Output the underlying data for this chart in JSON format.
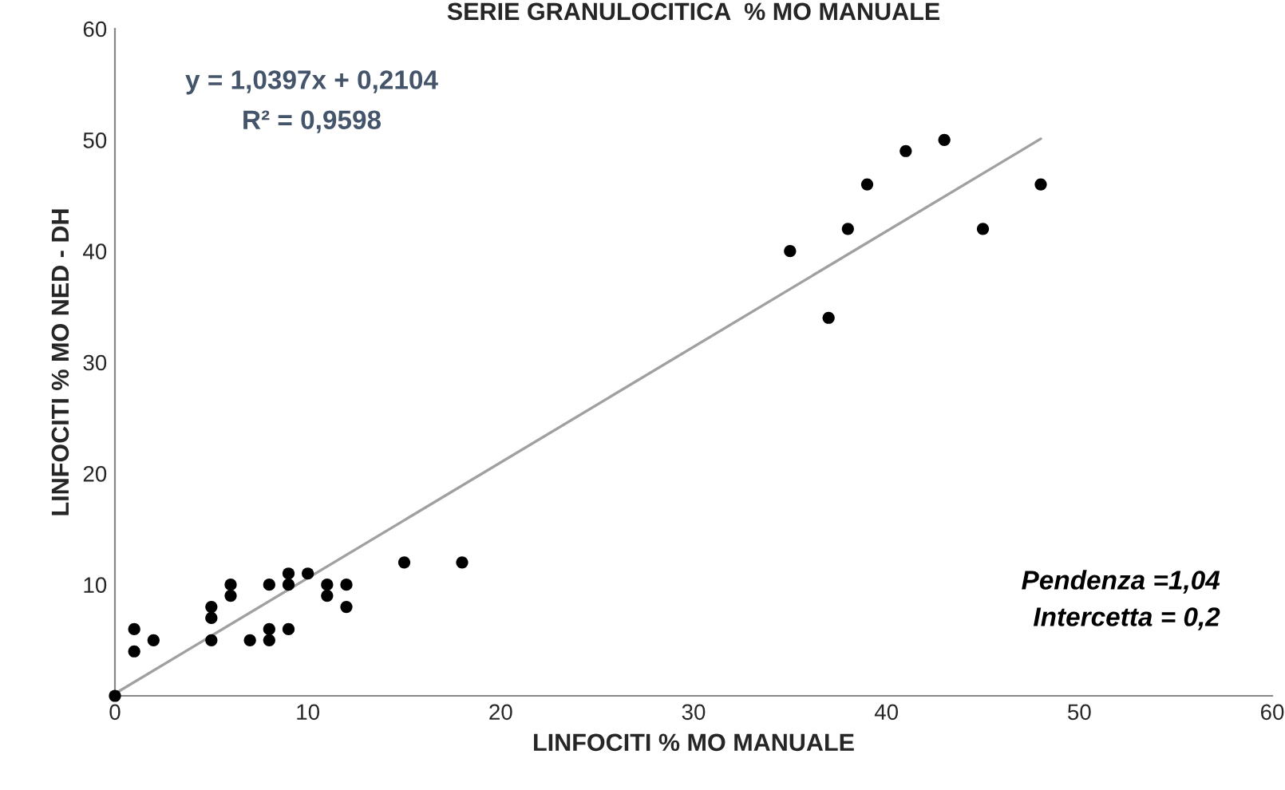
{
  "chart_data": {
    "type": "scatter",
    "title": "SERIE GRANULOCITICA  % MO MANUALE",
    "xlabel": "LINFOCITI % MO MANUALE",
    "ylabel": "LINFOCITI % MO NED - DH",
    "series": [
      {
        "marker": "circle",
        "color": "#000000",
        "x": [
          0,
          1,
          1,
          2,
          5,
          5,
          5,
          6,
          6,
          7,
          8,
          8,
          8,
          9,
          9,
          9,
          10,
          11,
          11,
          12,
          12,
          15,
          18,
          35,
          37,
          38,
          39,
          41,
          43,
          45,
          48
        ],
        "values": [
          0,
          6,
          4,
          5,
          8,
          7,
          5,
          10,
          9,
          5,
          10,
          6,
          5,
          11,
          10,
          6,
          11,
          10,
          9,
          10,
          8,
          12,
          12,
          40,
          34,
          42,
          46,
          49,
          50,
          42,
          46
        ]
      },
      {
        "type": "line",
        "color": "#a0a0a0",
        "x": [
          0,
          48
        ],
        "values": [
          0.2,
          50.1
        ]
      }
    ],
    "xlim": [
      0,
      60
    ],
    "xticks": [
      0,
      10,
      20,
      30,
      40,
      50,
      60
    ],
    "ylim": [
      0,
      60
    ],
    "yticks": [
      10,
      20,
      30,
      40,
      50,
      60
    ],
    "grid": false,
    "legend": false,
    "annotations": [
      "y = 1,0397x + 0,2104",
      "R² = 0,9598",
      "Pendenza =1,04",
      "Intercetta = 0,2"
    ]
  }
}
